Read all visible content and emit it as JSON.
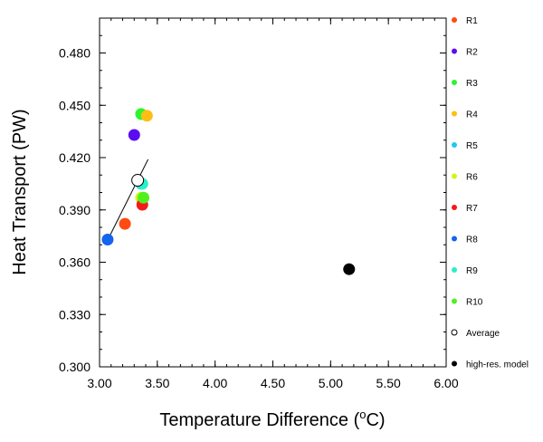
{
  "chart_data": {
    "type": "scatter",
    "title": "",
    "xlabel": "Temperature Difference",
    "xlabel_unit_pre": "(",
    "xlabel_unit_sup": "o",
    "xlabel_unit_post": "C)",
    "ylabel": "Heat Transport (PW)",
    "xlim": [
      3.0,
      6.0
    ],
    "ylim": [
      0.3,
      0.5
    ],
    "xticks": [
      "3.00",
      "3.50",
      "4.00",
      "4.50",
      "5.00",
      "5.50",
      "6.00"
    ],
    "yticks": [
      "0.300",
      "0.330",
      "0.360",
      "0.390",
      "0.420",
      "0.450",
      "0.480"
    ],
    "grid": false,
    "legend_position": "right",
    "series": [
      {
        "name": "R1",
        "color": "#ff4a12",
        "x": 3.22,
        "y": 0.382,
        "filled": true
      },
      {
        "name": "R2",
        "color": "#5a0ef0",
        "x": 3.3,
        "y": 0.433,
        "filled": true
      },
      {
        "name": "R3",
        "color": "#2df52d",
        "x": 3.36,
        "y": 0.445,
        "filled": true
      },
      {
        "name": "R4",
        "color": "#ffbe14",
        "x": 3.41,
        "y": 0.444,
        "filled": true
      },
      {
        "name": "R5",
        "color": "#1ec8f5",
        "x": 3.36,
        "y": 0.405,
        "filled": true
      },
      {
        "name": "R6",
        "color": "#d2f514",
        "x": 3.36,
        "y": 0.397,
        "filled": true
      },
      {
        "name": "R7",
        "color": "#f51919",
        "x": 3.37,
        "y": 0.393,
        "filled": true
      },
      {
        "name": "R8",
        "color": "#1464f0",
        "x": 3.07,
        "y": 0.373,
        "filled": true
      },
      {
        "name": "R9",
        "color": "#28f0c8",
        "x": 3.37,
        "y": 0.405,
        "filled": true
      },
      {
        "name": "R10",
        "color": "#50f020",
        "x": 3.38,
        "y": 0.397,
        "filled": true
      },
      {
        "name": "Average",
        "color": "#000000",
        "x": 3.33,
        "y": 0.407,
        "filled": false
      },
      {
        "name": "high-res. model",
        "color": "#000000",
        "x": 5.16,
        "y": 0.356,
        "filled": true
      }
    ],
    "regression_line": {
      "x": [
        3.08,
        3.42
      ],
      "y": [
        0.374,
        0.419
      ]
    }
  }
}
